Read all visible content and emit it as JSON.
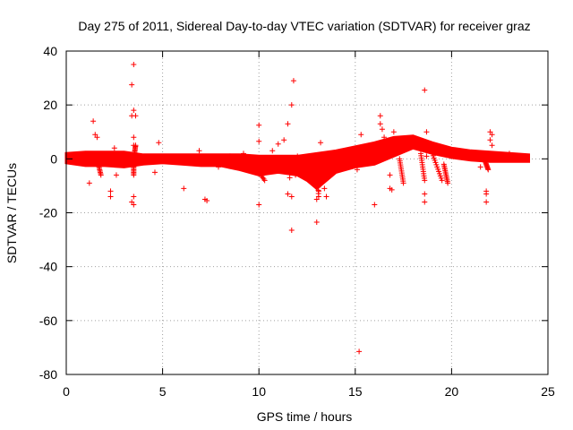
{
  "chart_data": {
    "type": "scatter",
    "title": "Day 275 of 2011, Sidereal Day-to-day VTEC variation (SDTVAR) for receiver graz",
    "xlabel": "GPS time / hours",
    "ylabel": "SDTVAR / TECUs",
    "xlim": [
      0,
      25
    ],
    "ylim": [
      -80,
      40
    ],
    "x_ticks": [
      0,
      5,
      10,
      15,
      20,
      25
    ],
    "y_ticks": [
      -80,
      -60,
      -40,
      -20,
      0,
      20,
      40
    ],
    "grid": true,
    "marker": "+",
    "color": "#ff0000",
    "band": [
      [
        0.0,
        -1.5,
        2.0
      ],
      [
        1.0,
        -2.5,
        2.5
      ],
      [
        2.0,
        -2.5,
        2.5
      ],
      [
        3.0,
        -3.0,
        2.5
      ],
      [
        4.0,
        -2.0,
        1.5
      ],
      [
        5.0,
        -1.5,
        1.5
      ],
      [
        6.0,
        -2.0,
        1.5
      ],
      [
        7.0,
        -2.5,
        1.5
      ],
      [
        8.0,
        -2.5,
        1.5
      ],
      [
        9.0,
        -4.0,
        1.5
      ],
      [
        10.0,
        -6.0,
        1.0
      ],
      [
        11.0,
        -5.0,
        1.0
      ],
      [
        12.0,
        -6.0,
        1.0
      ],
      [
        12.5,
        -8.0,
        1.5
      ],
      [
        13.0,
        -11.0,
        2.0
      ],
      [
        14.0,
        -5.0,
        3.0
      ],
      [
        15.0,
        -3.0,
        4.5
      ],
      [
        16.0,
        -2.0,
        6.0
      ],
      [
        17.0,
        1.0,
        8.0
      ],
      [
        18.0,
        4.0,
        8.5
      ],
      [
        19.0,
        2.0,
        6.0
      ],
      [
        20.0,
        0.5,
        4.0
      ],
      [
        21.0,
        -0.5,
        3.0
      ],
      [
        22.0,
        -1.0,
        2.5
      ],
      [
        23.0,
        -1.0,
        2.0
      ],
      [
        24.0,
        -1.0,
        1.5
      ]
    ],
    "streaks": [
      [
        3.5,
        3.5,
        0,
        -6
      ],
      [
        3.5,
        3.6,
        0,
        5
      ],
      [
        17.3,
        17.5,
        0,
        -9
      ],
      [
        18.4,
        18.6,
        2,
        -8
      ],
      [
        19.0,
        19.5,
        2,
        -8
      ],
      [
        19.6,
        19.8,
        -2,
        -9
      ],
      [
        13.0,
        13.1,
        0,
        -14
      ],
      [
        9.7,
        10.3,
        -2,
        -8
      ],
      [
        21.7,
        21.9,
        0,
        -4
      ],
      [
        1.6,
        1.8,
        0,
        -6
      ]
    ],
    "outliers": [
      [
        1.4,
        14
      ],
      [
        1.5,
        9
      ],
      [
        1.6,
        8
      ],
      [
        1.2,
        -9
      ],
      [
        2.3,
        -12
      ],
      [
        2.3,
        -14
      ],
      [
        3.4,
        27.5
      ],
      [
        3.5,
        35
      ],
      [
        3.5,
        18
      ],
      [
        3.4,
        16
      ],
      [
        3.6,
        16
      ],
      [
        3.5,
        8
      ],
      [
        3.5,
        5
      ],
      [
        3.5,
        -14
      ],
      [
        3.4,
        -16
      ],
      [
        3.5,
        -17
      ],
      [
        4.8,
        6
      ],
      [
        6.1,
        -11
      ],
      [
        7.2,
        -15
      ],
      [
        7.3,
        -15.5
      ],
      [
        7.5,
        -1
      ],
      [
        10.0,
        12.5
      ],
      [
        10.0,
        6.5
      ],
      [
        10.0,
        -17
      ],
      [
        10.7,
        3
      ],
      [
        11.0,
        5.5
      ],
      [
        11.3,
        7
      ],
      [
        11.5,
        13
      ],
      [
        11.7,
        20
      ],
      [
        11.8,
        29
      ],
      [
        11.7,
        -26.5
      ],
      [
        11.7,
        -14
      ],
      [
        11.5,
        -13
      ],
      [
        11.6,
        -7
      ],
      [
        11.9,
        -6
      ],
      [
        12.0,
        1
      ],
      [
        12.0,
        -4
      ],
      [
        13.0,
        -23.5
      ],
      [
        13.0,
        -15
      ],
      [
        13.1,
        -12
      ],
      [
        13.4,
        -11
      ],
      [
        13.5,
        -14
      ],
      [
        13.4,
        0
      ],
      [
        13.2,
        6
      ],
      [
        13.4,
        -3
      ],
      [
        15.1,
        -4
      ],
      [
        15.2,
        -71.5
      ],
      [
        15.3,
        9
      ],
      [
        16.0,
        -17
      ],
      [
        16.3,
        16
      ],
      [
        16.3,
        13
      ],
      [
        16.4,
        11
      ],
      [
        16.5,
        8
      ],
      [
        16.7,
        5
      ],
      [
        16.8,
        -6
      ],
      [
        16.8,
        -11
      ],
      [
        16.9,
        -11.5
      ],
      [
        16.9,
        3
      ],
      [
        17.0,
        10
      ],
      [
        18.6,
        25.5
      ],
      [
        18.6,
        -13
      ],
      [
        18.6,
        -16
      ],
      [
        18.7,
        10
      ],
      [
        18.7,
        1
      ],
      [
        21.5,
        -3
      ],
      [
        21.8,
        -12
      ],
      [
        21.8,
        -13
      ],
      [
        21.8,
        -16
      ],
      [
        22.0,
        10
      ],
      [
        22.1,
        9
      ],
      [
        22.0,
        7
      ],
      [
        22.1,
        5
      ],
      [
        23.0,
        2
      ],
      [
        2.5,
        4
      ],
      [
        2.6,
        -6
      ],
      [
        4.6,
        -5
      ],
      [
        6.9,
        3
      ],
      [
        7.9,
        -3
      ],
      [
        8.5,
        1
      ],
      [
        9.2,
        2
      ]
    ]
  }
}
